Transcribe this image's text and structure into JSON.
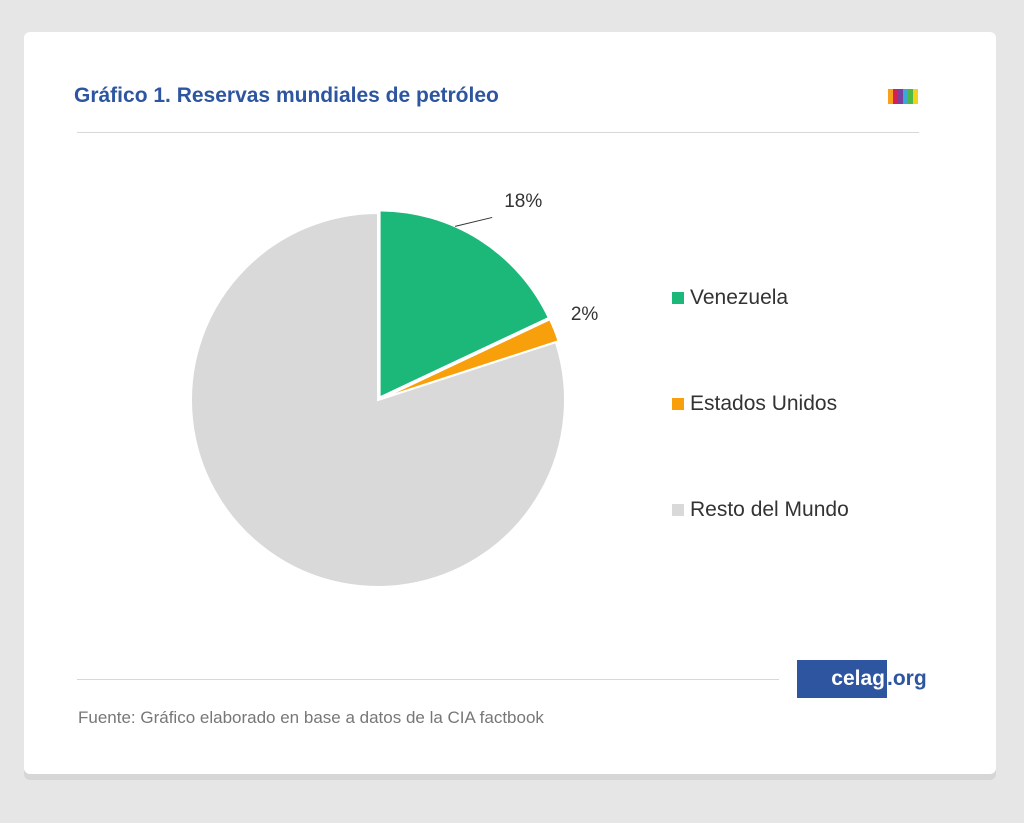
{
  "title": "Gráfico 1. Reservas mundiales de petróleo",
  "brand_colors": [
    "#f7a21b",
    "#d6204f",
    "#7b3fa0",
    "#3aa9d8",
    "#4cb847",
    "#f3d21c"
  ],
  "chart_data": {
    "type": "pie",
    "title": "Gráfico 1. Reservas mundiales de petróleo",
    "categories": [
      "Venezuela",
      "Estados Unidos",
      "Resto del Mundo"
    ],
    "values": [
      18,
      2,
      80
    ],
    "labels": [
      "18%",
      "2%",
      ""
    ],
    "colors": [
      "#1bb87a",
      "#f7a00b",
      "#d9d9d9"
    ],
    "legend_position": "right"
  },
  "source": "Fuente: Gráfico elaborado en base a datos de la CIA factbook",
  "logo": {
    "main": "celag",
    "suffix": ".org"
  }
}
